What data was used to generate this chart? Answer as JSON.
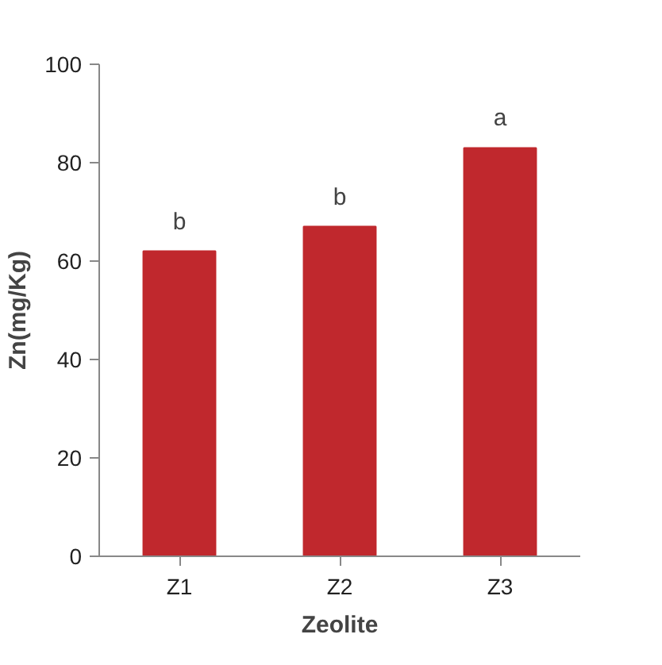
{
  "chart_data": {
    "type": "bar",
    "categories": [
      "Z1",
      "Z2",
      "Z3"
    ],
    "values": [
      62,
      67,
      83
    ],
    "color": "#c0282d",
    "xlabel": "Zeolite",
    "ylabel": "Zn(mg/Kg)",
    "ylim": [
      0,
      100
    ],
    "yticks": [
      0,
      20,
      40,
      60,
      80,
      100
    ],
    "grid": false,
    "annotations": [
      {
        "text": "b",
        "x": "Z1",
        "y": 62
      },
      {
        "text": "b",
        "x": "Z2",
        "y": 67
      },
      {
        "text": "a",
        "x": "Z3",
        "y": 83
      }
    ]
  }
}
